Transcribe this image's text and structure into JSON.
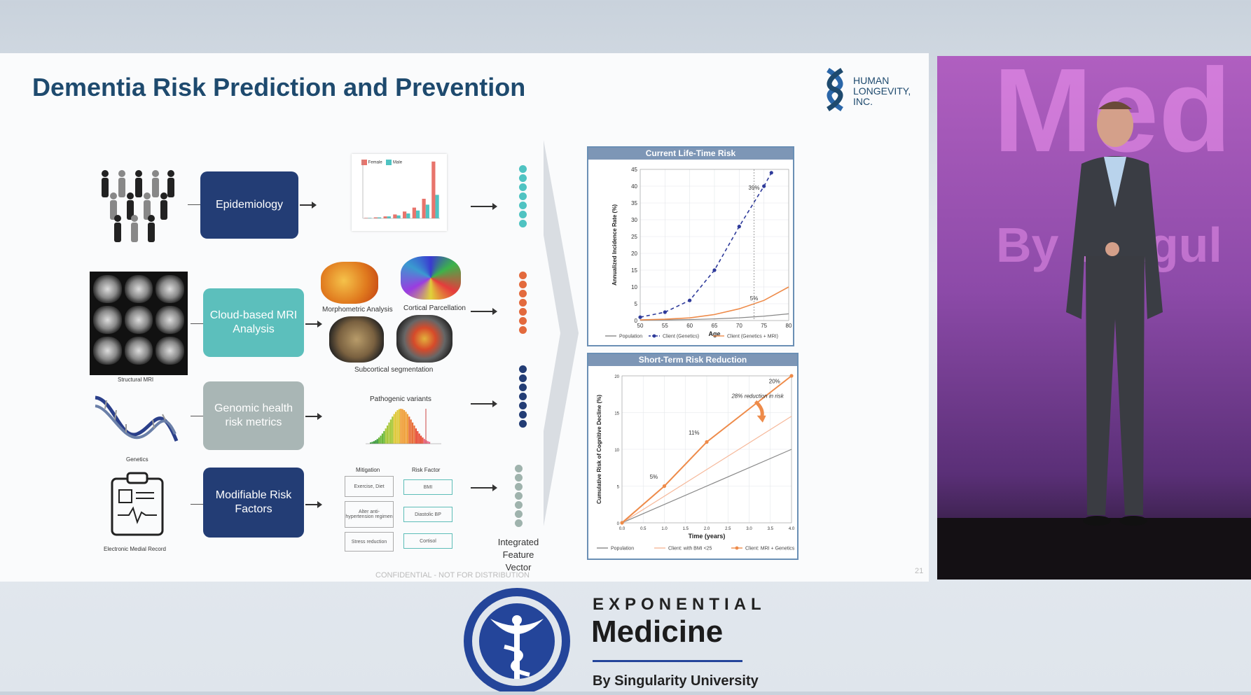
{
  "slide": {
    "title": "Dementia Risk Prediction and Prevention",
    "logo_text": [
      "HUMAN",
      "LONGEVITY,",
      "INC."
    ],
    "footer_confidential": "CONFIDENTIAL - NOT FOR DISTRIBUTION",
    "page_number": "21",
    "rows": [
      {
        "box": "Epidemiology",
        "color": "#233d75"
      },
      {
        "box": "Cloud-based MRI Analysis",
        "color": "#5cbfbc"
      },
      {
        "box": "Genomic health risk metrics",
        "color": "#a9b6b5"
      },
      {
        "box": "Modifiable Risk Factors",
        "color": "#233d75"
      }
    ],
    "labels": {
      "structural_mri": "Structural MRI",
      "genetics": "Genetics",
      "emr": "Electronic Medial Record",
      "morphometric": "Morphometric Analysis",
      "cortical": "Cortical Parcellation",
      "subcortical": "Subcortical segmentation",
      "pathogenic": "Pathogenic variants",
      "mitigation": "Mitigation",
      "risk_factor": "Risk Factor",
      "feature_vector_1": "Integrated",
      "feature_vector_2": "Feature Vector",
      "legend_female": "Female",
      "legend_male": "Male"
    },
    "mitigation_items": [
      "Exercise, Diet",
      "Alter anti-hypertension regimen",
      "Stress reduction"
    ],
    "risk_factor_items": [
      "BMI",
      "Diastolic BP",
      "Cortisol"
    ]
  },
  "chart_data": [
    {
      "type": "bar",
      "categories": [
        "1",
        "2",
        "3",
        "4",
        "5",
        "6",
        "7",
        "8"
      ],
      "series": [
        {
          "name": "Female",
          "values": [
            0.5,
            1,
            2,
            4,
            7,
            11,
            20,
            58
          ]
        },
        {
          "name": "Male",
          "values": [
            0.5,
            1,
            2,
            3,
            5,
            8,
            14,
            24
          ]
        }
      ],
      "colors": [
        "#e8746c",
        "#4fc3c2"
      ]
    },
    {
      "type": "line",
      "title": "Current Life-Time Risk",
      "xlabel": "Age",
      "ylabel": "Annualized Incidence Rate (%)",
      "xlim": [
        50,
        80
      ],
      "ylim": [
        0,
        45
      ],
      "xticks": [
        50,
        55,
        60,
        65,
        70,
        75,
        80
      ],
      "yticks": [
        0,
        5,
        10,
        15,
        20,
        25,
        30,
        35,
        40,
        45
      ],
      "series": [
        {
          "name": "Population",
          "color": "#888888",
          "x": [
            50,
            55,
            60,
            65,
            70,
            75,
            80
          ],
          "y": [
            0.1,
            0.2,
            0.3,
            0.5,
            0.8,
            1.3,
            2
          ]
        },
        {
          "name": "Client (Genetics)",
          "color": "#2e3a9a",
          "x": [
            50,
            55,
            60,
            65,
            70,
            75,
            76.5
          ],
          "y": [
            1,
            2.5,
            6,
            15,
            28,
            40,
            44
          ]
        },
        {
          "name": "Client (Genetics + MRI)",
          "color": "#ee8b4a",
          "x": [
            50,
            55,
            60,
            65,
            70,
            75,
            80
          ],
          "y": [
            0.2,
            0.4,
            0.8,
            1.8,
            3.5,
            6,
            10
          ]
        }
      ],
      "annotations": [
        {
          "text": "39%",
          "x": 73,
          "y": 39
        },
        {
          "text": "5%",
          "x": 73,
          "y": 6
        }
      ]
    },
    {
      "type": "line",
      "title": "Short-Term Risk Reduction",
      "xlabel": "Time (years)",
      "ylabel": "Cumulative Risk of Cognitive Decline (%)",
      "xlim": [
        0,
        4
      ],
      "ylim": [
        0,
        20
      ],
      "xticks": [
        "0.0",
        "0.5",
        "1.0",
        "1.5",
        "2.0",
        "2.5",
        "3.0",
        "3.5",
        "4.0"
      ],
      "yticks": [
        0,
        5,
        10,
        15,
        20
      ],
      "series": [
        {
          "name": "Population",
          "color": "#888888",
          "x": [
            0,
            4
          ],
          "y": [
            0,
            10
          ]
        },
        {
          "name": "Client: with BMI <25",
          "color": "#f6b89a",
          "x": [
            0,
            4
          ],
          "y": [
            0,
            14.5
          ]
        },
        {
          "name": "Client: MRI + Genetics",
          "color": "#ee8b4a",
          "x": [
            0,
            1,
            2,
            4
          ],
          "y": [
            0,
            5,
            11,
            20
          ]
        }
      ],
      "annotations": [
        {
          "text": "5%",
          "x": 0.75,
          "y": 6
        },
        {
          "text": "11%",
          "x": 1.7,
          "y": 12
        },
        {
          "text": "20%",
          "x": 3.6,
          "y": 19
        },
        {
          "text": "28% reduction in risk",
          "x": 3.2,
          "y": 17
        }
      ]
    }
  ],
  "branding": {
    "line1": "EXPONENTIAL",
    "line2": "Medicine",
    "line3": "By Singularity University"
  },
  "stage": {
    "backdrop_1": "Med",
    "backdrop_2": "By Singul"
  }
}
